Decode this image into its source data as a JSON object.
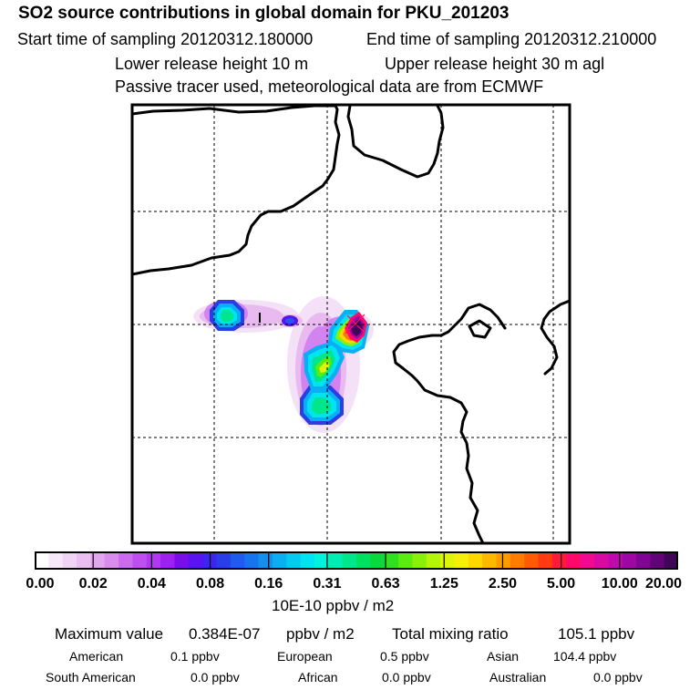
{
  "header": {
    "title": "SO2 source contributions in global domain for PKU_201203",
    "start_time": "Start time of sampling 20120312.180000",
    "end_time": "End time of sampling 20120312.210000",
    "lower_release": "Lower release height   10 m",
    "upper_release": "Upper release height   30 m    agl",
    "tracer_note": "Passive tracer used, meteorological data are from ECMWF"
  },
  "colorbar": {
    "colors": [
      "#ffffff",
      "#f6e8f9",
      "#f0d4f5",
      "#eabef2",
      "#e2a6ef",
      "#d88cee",
      "#cc6af0",
      "#bf4ef2",
      "#b236f4",
      "#a020f0",
      "#7a0ee6",
      "#5a14f0",
      "#3f24f0",
      "#2a3ee6",
      "#1f5ced",
      "#1774f0",
      "#1190ee",
      "#0aaef2",
      "#04caf0",
      "#00e4f2",
      "#00f4dd",
      "#00eeb4",
      "#00e68c",
      "#00e060",
      "#0ad83c",
      "#2ee020",
      "#5aec10",
      "#88f00a",
      "#b4f50a",
      "#dcf50a",
      "#f4f00a",
      "#ffd700",
      "#ffb800",
      "#ff9a00",
      "#ff7c00",
      "#ff5c00",
      "#ff3c10",
      "#ff1a3a",
      "#ff0a6a",
      "#f00a90",
      "#d80aa4",
      "#c00ab0",
      "#a006a6",
      "#820494",
      "#620478",
      "#400458"
    ],
    "labels": [
      "0.00",
      "0.02",
      "0.04",
      "0.08",
      "0.16",
      "0.31",
      "0.63",
      "1.25",
      "2.50",
      "5.00",
      "10.00",
      "20.00"
    ],
    "unit": "10E-10 ppbv / m2"
  },
  "summary": {
    "max_label": "Maximum value",
    "max_value": "0.384E-07",
    "max_unit": "ppbv / m2",
    "total_label": "Total mixing ratio",
    "total_value": "105.1 ppbv"
  },
  "sources": [
    {
      "name": "American",
      "value": "0.1 ppbv"
    },
    {
      "name": "European",
      "value": "0.5 ppbv"
    },
    {
      "name": "Asian",
      "value": "104.4 ppbv"
    },
    {
      "name": "South American",
      "value": "0.0 ppbv"
    },
    {
      "name": "African",
      "value": "0.0 ppbv"
    },
    {
      "name": "Australian",
      "value": "0.0 ppbv"
    }
  ],
  "colors": {
    "plume_core": "#ff0a6a",
    "plume_peak": "#400458"
  }
}
